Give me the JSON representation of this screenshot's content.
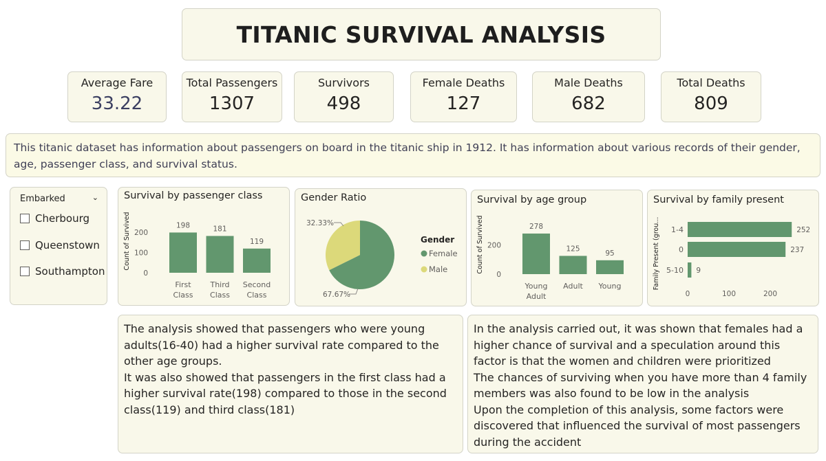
{
  "title": "TITANIC SURVIVAL ANALYSIS",
  "kpis": [
    {
      "label": "Average Fare",
      "value": "33.22"
    },
    {
      "label": "Total Passengers",
      "value": "1307"
    },
    {
      "label": "Survivors",
      "value": "498"
    },
    {
      "label": "Female Deaths",
      "value": "127"
    },
    {
      "label": "Male Deaths",
      "value": "682"
    },
    {
      "label": "Total Deaths",
      "value": "809"
    }
  ],
  "description": "This titanic dataset has information about passengers on board in the titanic ship in 1912. It has information about various records of their gender, age, passenger class, and survival status.",
  "slicer": {
    "label": "Embarked",
    "options": [
      "Cherbourg",
      "Queenstown",
      "Southampton"
    ]
  },
  "chart_data": [
    {
      "type": "bar",
      "title": "Survival by passenger class",
      "ylabel": "Count of Survived",
      "categories": [
        [
          "First",
          "Class"
        ],
        [
          "Third",
          "Class"
        ],
        [
          "Second",
          "Class"
        ]
      ],
      "values": [
        198,
        181,
        119
      ],
      "yticks": [
        0,
        100,
        200
      ],
      "ylim": [
        0,
        240
      ],
      "color": "#62976e"
    },
    {
      "type": "pie",
      "title": "Gender Ratio",
      "legend_title": "Gender",
      "slices": [
        {
          "name": "Female",
          "value": 67.67,
          "label": "67.67%",
          "color": "#62976e"
        },
        {
          "name": "Male",
          "value": 32.33,
          "label": "32.33%",
          "color": "#dcd97a"
        }
      ]
    },
    {
      "type": "bar",
      "title": "Survival by age group",
      "ylabel": "Count of Survived",
      "categories": [
        [
          "Young",
          "Adult"
        ],
        [
          "Adult"
        ],
        [
          "Young"
        ]
      ],
      "values": [
        278,
        125,
        95
      ],
      "yticks": [
        0,
        200
      ],
      "ylim": [
        0,
        320
      ],
      "color": "#62976e"
    },
    {
      "type": "bar",
      "orientation": "horizontal",
      "title": "Survival by family present",
      "ylabel": "Family Present (grou...",
      "categories": [
        "1-4",
        "0",
        "5-10"
      ],
      "values": [
        252,
        237,
        9
      ],
      "xticks": [
        0,
        100,
        200
      ],
      "xlim": [
        0,
        265
      ],
      "color": "#62976e"
    }
  ],
  "notes": {
    "left": [
      "The analysis showed that passengers who were young adults(16-40) had a higher survival rate compared to the other age groups.",
      "It was also showed that passengers in the first class had a higher survival rate(198) compared to those in the second class(119) and third class(181)"
    ],
    "right": [
      "In the analysis carried out, it was shown that females had a higher chance of survival and a speculation around this factor is that the women and children were prioritized",
      "The chances of surviving when you have more than 4 family members was also found to be low in the analysis",
      "Upon the completion of this analysis, some factors were discovered that influenced the survival of most passengers during the accident"
    ]
  }
}
